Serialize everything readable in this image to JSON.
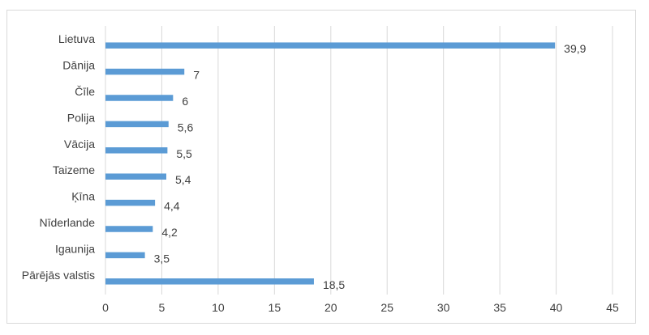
{
  "chart_data": {
    "type": "bar",
    "orientation": "horizontal",
    "categories": [
      "Lietuva",
      "Dānija",
      "Čīle",
      "Polija",
      "Vācija",
      "Taizeme",
      "Ķīna",
      "Nīderlande",
      "Igaunija",
      "Pārējās valstis"
    ],
    "values": [
      39.9,
      7,
      6,
      5.6,
      5.5,
      5.4,
      4.4,
      4.2,
      3.5,
      18.5
    ],
    "data_labels": [
      "39,9",
      "7",
      "6",
      "5,6",
      "5,5",
      "5,4",
      "4,4",
      "4,2",
      "3,5",
      "18,5"
    ],
    "xlim": [
      0,
      45
    ],
    "x_ticks": [
      0,
      5,
      10,
      15,
      20,
      25,
      30,
      35,
      40,
      45
    ],
    "grid": "vertical",
    "legend": "none",
    "colors": {
      "bar": "#5b9bd5",
      "grid": "#d9d9d9",
      "text": "#404040"
    }
  }
}
